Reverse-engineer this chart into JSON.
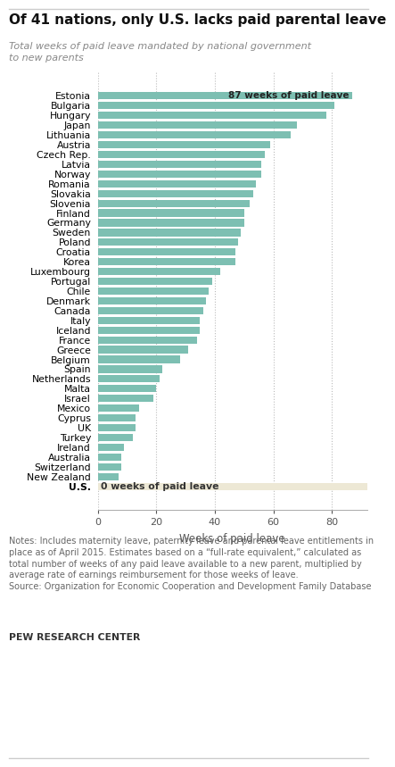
{
  "title": "Of 41 nations, only U.S. lacks paid parental leave",
  "subtitle": "Total weeks of paid leave mandated by national government\nto new parents",
  "xlabel": "Weeks of paid leave",
  "countries": [
    "Estonia",
    "Bulgaria",
    "Hungary",
    "Japan",
    "Lithuania",
    "Austria",
    "Czech Rep.",
    "Latvia",
    "Norway",
    "Romania",
    "Slovakia",
    "Slovenia",
    "Finland",
    "Germany",
    "Sweden",
    "Poland",
    "Croatia",
    "Korea",
    "Luxembourg",
    "Portugal",
    "Chile",
    "Denmark",
    "Canada",
    "Italy",
    "Iceland",
    "France",
    "Greece",
    "Belgium",
    "Spain",
    "Netherlands",
    "Malta",
    "Israel",
    "Mexico",
    "Cyprus",
    "UK",
    "Turkey",
    "Ireland",
    "Australia",
    "Switzerland",
    "New Zealand",
    "U.S."
  ],
  "values": [
    87,
    81,
    78,
    68,
    66,
    59,
    57,
    56,
    56,
    54,
    53,
    52,
    50,
    50,
    49,
    48,
    47,
    47,
    42,
    39,
    38,
    37,
    36,
    35,
    35,
    34,
    31,
    28,
    22,
    21,
    20,
    19,
    14,
    13,
    13,
    12,
    9,
    8,
    8,
    7,
    0
  ],
  "bar_color": "#7dbfb2",
  "us_bg_color": "#ede8d5",
  "annotation_bg_color": "#7dbfb2",
  "annotation_text": "87 weeks of paid leave",
  "us_annotation": "0 weeks of paid leave",
  "notes_line1": "Notes: Includes maternity leave, paternity leave and parental leave entitlements in",
  "notes_line2": "place as of April 2015. Estimates based on a “full-rate equivalent,” calculated as",
  "notes_line3": "total number of weeks of any paid leave available to a new parent, multiplied by",
  "notes_line4": "average rate of earnings reimbursement for those weeks of leave.",
  "notes_line5": "Source: Organization for Economic Cooperation and Development Family Database",
  "source_label": "PEW RESEARCH CENTER",
  "xlim_max": 92,
  "xticks": [
    0,
    20,
    40,
    60,
    80
  ]
}
